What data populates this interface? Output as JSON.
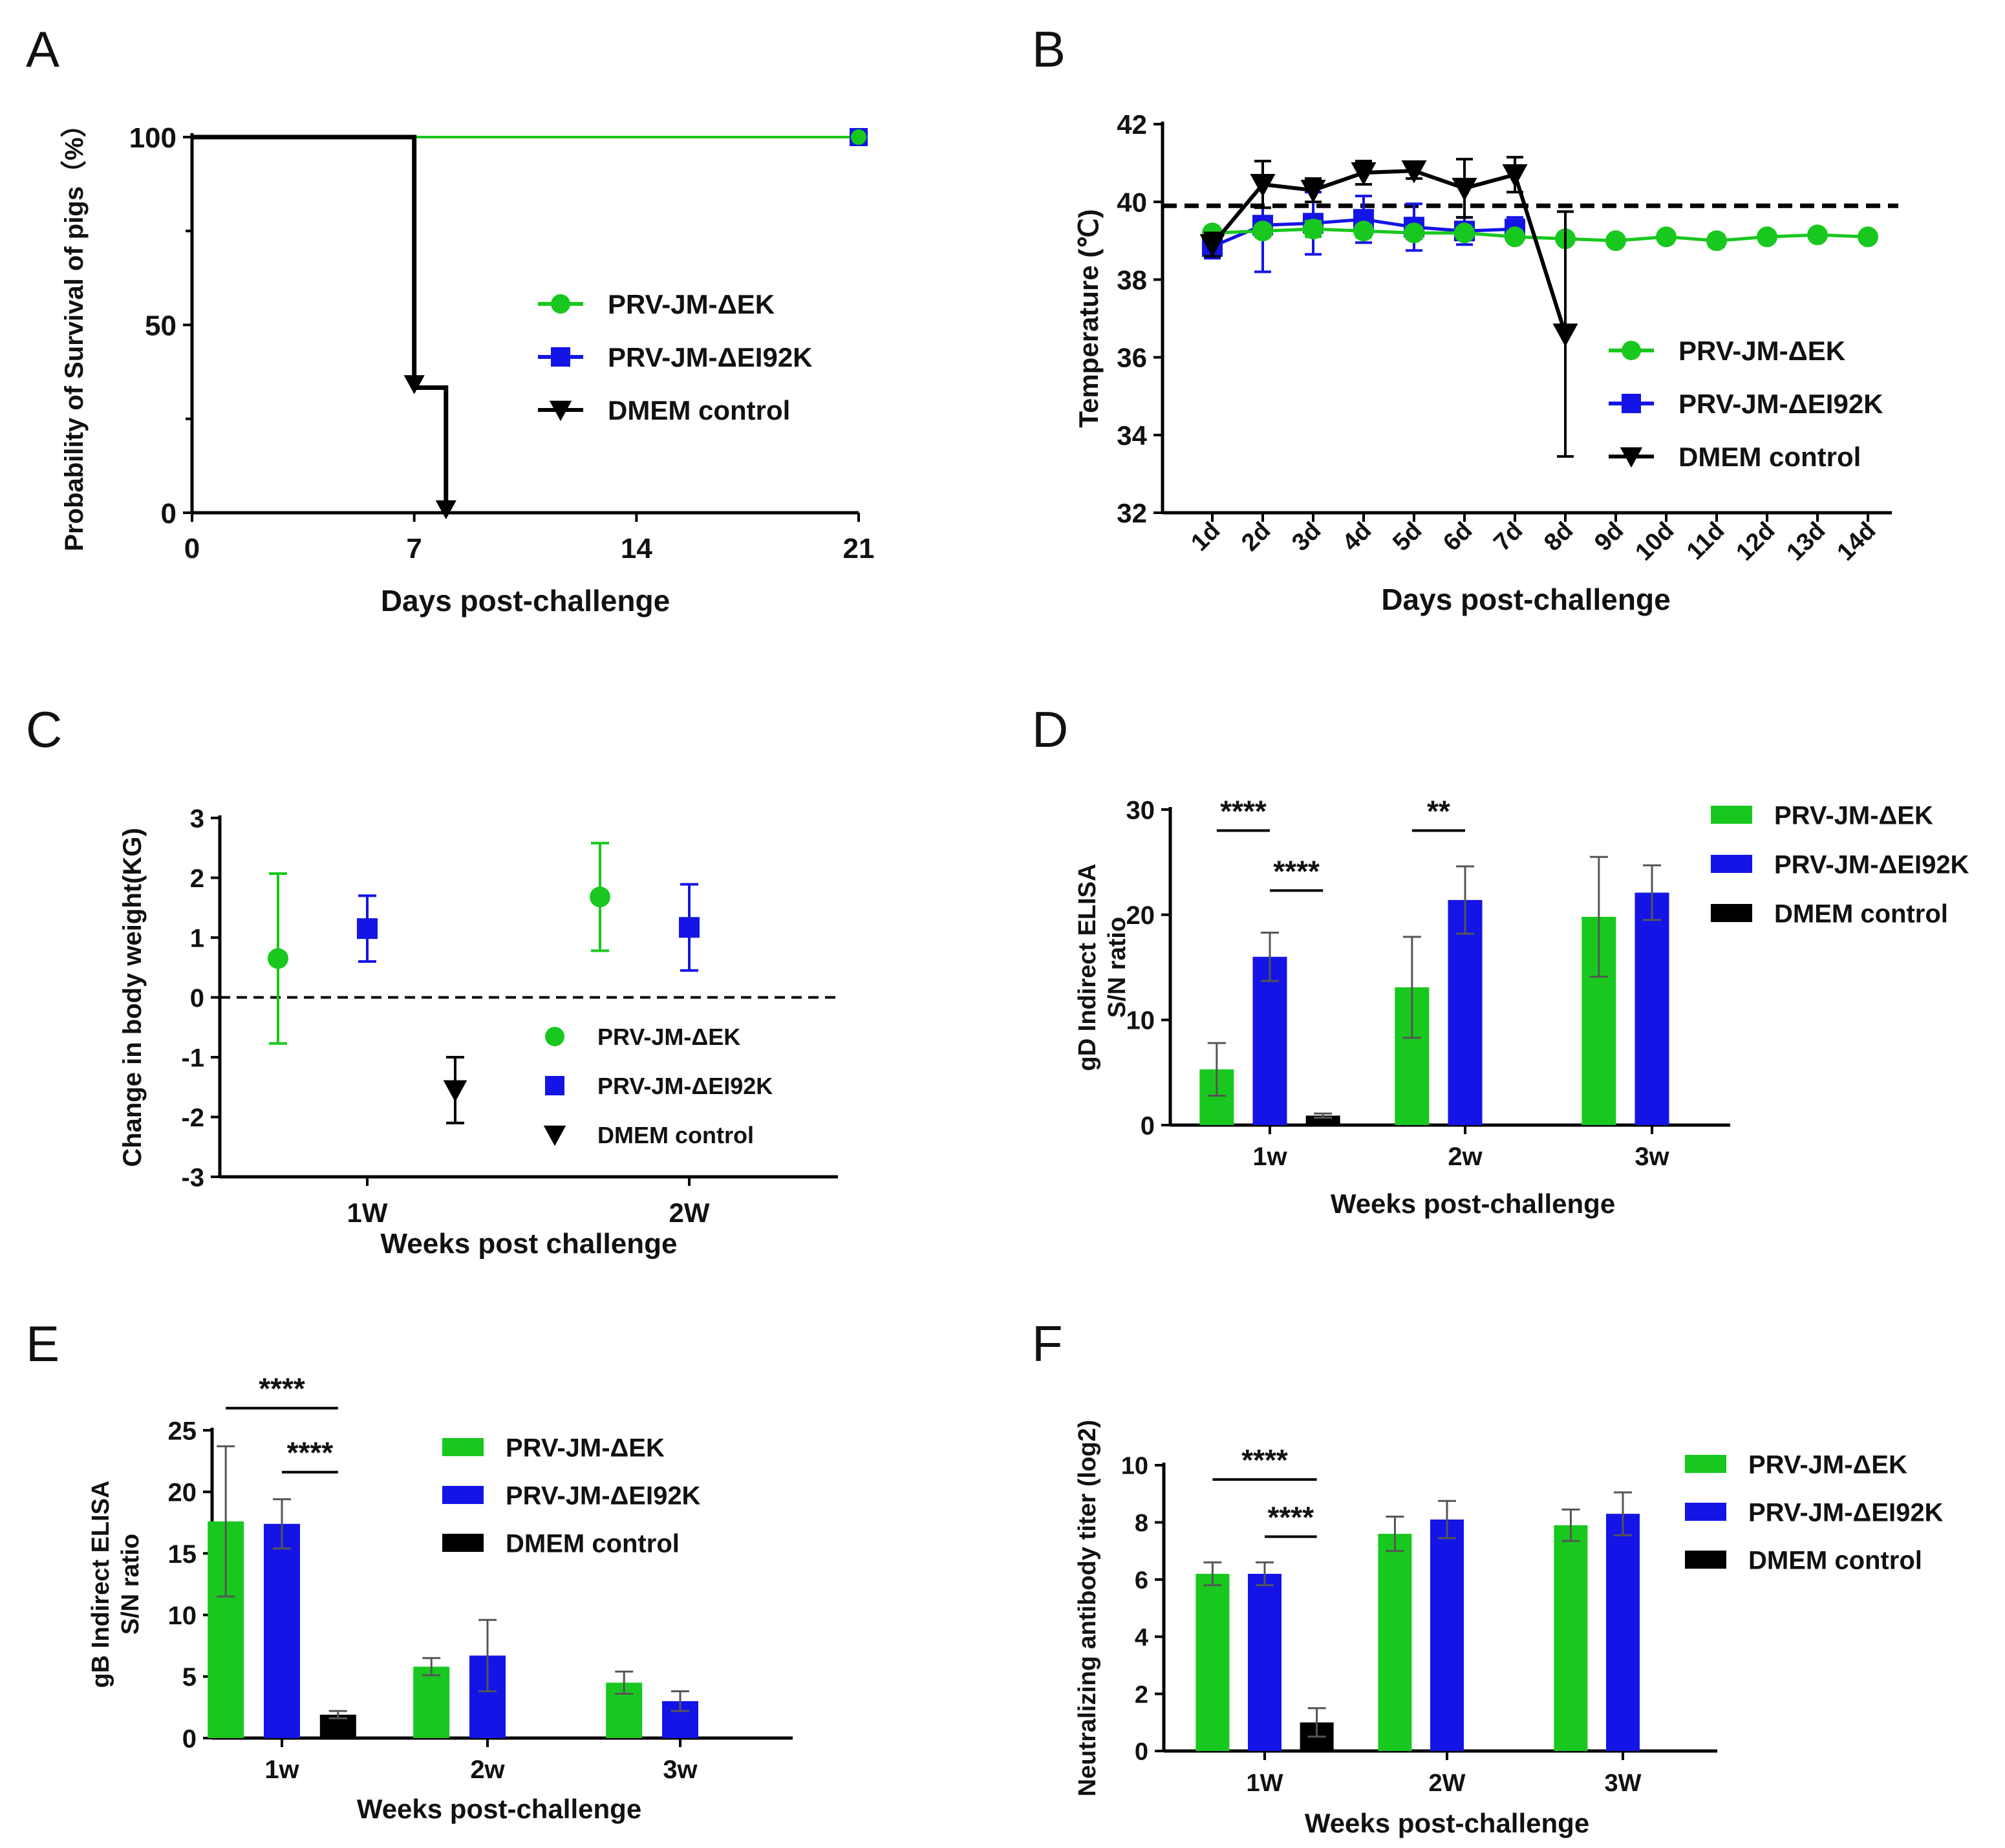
{
  "figure": {
    "panels": [
      "A",
      "B",
      "C",
      "D",
      "E",
      "F"
    ]
  },
  "colors": {
    "green": "#19c81e",
    "blue": "#1414e6",
    "black": "#000000"
  },
  "chart_data": [
    {
      "panel": "A",
      "type": "line",
      "subtype": "survival-step",
      "xlabel": "Days post-challenge",
      "ylabel": "Probability of Survival of pigs（%）",
      "xlim": [
        0,
        21
      ],
      "ylim": [
        0,
        100
      ],
      "xticks": [
        "0",
        "7",
        "14",
        "21"
      ],
      "yticks": [
        "0",
        "50",
        "100"
      ],
      "legend": {
        "position": "right",
        "entries": [
          "PRV-JM-ΔEK",
          "PRV-JM-ΔEI92K",
          "DMEM control"
        ]
      },
      "series": [
        {
          "name": "PRV-JM-ΔEK",
          "color": "green",
          "marker": "circle",
          "x": [
            0,
            21
          ],
          "y": [
            100,
            100
          ]
        },
        {
          "name": "PRV-JM-ΔEI92K",
          "color": "blue",
          "marker": "square",
          "x": [
            0,
            21
          ],
          "y": [
            100,
            100
          ]
        },
        {
          "name": "DMEM control",
          "color": "black",
          "marker": "triangle-down",
          "x": [
            0,
            7,
            7,
            8,
            8
          ],
          "y": [
            100,
            100,
            33.3,
            33.3,
            0
          ]
        }
      ]
    },
    {
      "panel": "B",
      "type": "line",
      "xlabel": "Days post-challenge",
      "ylabel": "Temperature (℃)",
      "ylim": [
        32,
        42
      ],
      "yticks": [
        "32",
        "34",
        "36",
        "38",
        "40",
        "42"
      ],
      "categories": [
        "1d",
        "2d",
        "3d",
        "4d",
        "5d",
        "6d",
        "7d",
        "8d",
        "9d",
        "10d",
        "11d",
        "12d",
        "13d",
        "14d"
      ],
      "threshold": 39.9,
      "legend": {
        "position": "bottom-right",
        "entries": [
          "PRV-JM-ΔEK",
          "PRV-JM-ΔEI92K",
          "DMEM control"
        ]
      },
      "series": [
        {
          "name": "PRV-JM-ΔEK",
          "color": "green",
          "marker": "circle",
          "values": [
            39.2,
            39.25,
            39.3,
            39.25,
            39.2,
            39.2,
            39.1,
            39.05,
            39.0,
            39.1,
            39.0,
            39.1,
            39.15,
            39.1
          ],
          "err": [
            0.1,
            0.15,
            0.2,
            0.15,
            0.15,
            0.1,
            0.1,
            0.1,
            0.1,
            0.1,
            0.15,
            0.1,
            0.1,
            0.1
          ]
        },
        {
          "name": "PRV-JM-ΔEI92K",
          "color": "blue",
          "marker": "square",
          "values": [
            38.85,
            39.4,
            39.45,
            39.55,
            39.35,
            39.25,
            39.3,
            null,
            null,
            null,
            null,
            null,
            null,
            null
          ],
          "err": [
            0.3,
            1.2,
            0.8,
            0.6,
            0.6,
            0.35,
            0.3,
            null,
            null,
            null,
            null,
            null,
            null,
            null
          ]
        },
        {
          "name": "DMEM control",
          "color": "black",
          "marker": "triangle-down",
          "values": [
            38.9,
            40.45,
            40.3,
            40.75,
            40.8,
            40.35,
            40.7,
            36.6,
            null,
            null,
            null,
            null,
            null,
            null
          ],
          "err": [
            0.3,
            0.6,
            0.3,
            0.3,
            0.2,
            0.75,
            0.45,
            3.15,
            null,
            null,
            null,
            null,
            null,
            null
          ]
        }
      ]
    },
    {
      "panel": "C",
      "type": "scatter",
      "xlabel": "Weeks post challenge",
      "ylabel": "Change in body weight(KG)",
      "ylim": [
        -3,
        3
      ],
      "yticks": [
        "-3",
        "-2",
        "-1",
        "0",
        "1",
        "2",
        "3"
      ],
      "categories": [
        "1W",
        "2W"
      ],
      "legend": {
        "position": "bottom-right",
        "entries": [
          "PRV-JM-ΔEK",
          "PRV-JM-ΔEI92K",
          "DMEM control"
        ]
      },
      "series": [
        {
          "name": "PRV-JM-ΔEK",
          "color": "green",
          "marker": "circle",
          "values": [
            0.65,
            1.68
          ],
          "err": [
            1.42,
            0.9
          ]
        },
        {
          "name": "PRV-JM-ΔEI92K",
          "color": "blue",
          "marker": "square",
          "values": [
            1.15,
            1.17
          ],
          "err": [
            0.55,
            0.72
          ]
        },
        {
          "name": "DMEM control",
          "color": "black",
          "marker": "triangle-down",
          "values": [
            -1.55,
            null
          ],
          "err": [
            0.55,
            null
          ]
        }
      ]
    },
    {
      "panel": "D",
      "type": "bar",
      "xlabel": "Weeks post-challenge",
      "ylabel": [
        "gD Indirect ELISA",
        "S/N ratio"
      ],
      "ylim": [
        0,
        30
      ],
      "yticks": [
        "0",
        "10",
        "20",
        "30"
      ],
      "categories": [
        "1w",
        "2w",
        "3w"
      ],
      "legend": {
        "position": "top-right",
        "entries": [
          "PRV-JM-ΔEK",
          "PRV-JM-ΔEI92K",
          "DMEM control"
        ]
      },
      "series": [
        {
          "name": "PRV-JM-ΔEK",
          "color": "green",
          "values": [
            5.3,
            13.1,
            19.8
          ],
          "err": [
            2.5,
            4.8,
            5.7
          ]
        },
        {
          "name": "PRV-JM-ΔEI92K",
          "color": "blue",
          "values": [
            16.0,
            21.4,
            22.1
          ],
          "err": [
            2.3,
            3.2,
            2.6
          ]
        },
        {
          "name": "DMEM control",
          "color": "black",
          "values": [
            0.9,
            null,
            null
          ],
          "err": [
            0.2,
            null,
            null
          ]
        }
      ],
      "annotations": [
        {
          "text": "****",
          "category": 0,
          "from": 0,
          "to": 1,
          "y": 29.2,
          "line_y": 28.0
        },
        {
          "text": "****",
          "category": 0,
          "from": 1,
          "to": 2,
          "y": 23.5,
          "line_y": 22.3
        },
        {
          "text": "**",
          "category": 1,
          "from": 0,
          "to": 1,
          "y": 29.2,
          "line_y": 28.0
        }
      ]
    },
    {
      "panel": "E",
      "type": "bar",
      "xlabel": "Weeks post-challenge",
      "ylabel": [
        "gB Indirect ELISA",
        "S/N ratio"
      ],
      "ylim": [
        0,
        25
      ],
      "yticks": [
        "0",
        "5",
        "10",
        "15",
        "20",
        "25"
      ],
      "categories": [
        "1w",
        "2w",
        "3w"
      ],
      "legend": {
        "position": "top-right",
        "entries": [
          "PRV-JM-ΔEK",
          "PRV-JM-ΔEI92K",
          "DMEM control"
        ]
      },
      "series": [
        {
          "name": "PRV-JM-ΔEK",
          "color": "green",
          "values": [
            17.6,
            5.8,
            4.5
          ],
          "err": [
            6.1,
            0.7,
            0.9
          ]
        },
        {
          "name": "PRV-JM-ΔEI92K",
          "color": "blue",
          "values": [
            17.4,
            6.7,
            3.0
          ],
          "err": [
            2.0,
            2.9,
            0.8
          ]
        },
        {
          "name": "DMEM control",
          "color": "black",
          "values": [
            1.9,
            null,
            null
          ],
          "err": [
            0.3,
            null,
            null
          ]
        }
      ],
      "annotations": [
        {
          "text": "****",
          "category": 0,
          "from": 0,
          "to": 2,
          "y": 27.8,
          "line_y": 26.8
        },
        {
          "text": "****",
          "category": 0,
          "from": 1,
          "to": 2,
          "y": 22.2,
          "line_y": 21.6
        }
      ]
    },
    {
      "panel": "F",
      "type": "bar",
      "xlabel": "Weeks post-challenge",
      "ylabel": "Neutralizing antibody titer (log2)",
      "ylim": [
        0,
        10
      ],
      "yticks": [
        "0",
        "2",
        "4",
        "6",
        "8",
        "10"
      ],
      "categories": [
        "1W",
        "2W",
        "3W"
      ],
      "legend": {
        "position": "top-right",
        "entries": [
          "PRV-JM-ΔEK",
          "PRV-JM-ΔEI92K",
          "DMEM control"
        ]
      },
      "series": [
        {
          "name": "PRV-JM-ΔEK",
          "color": "green",
          "values": [
            6.2,
            7.6,
            7.9
          ],
          "err": [
            0.4,
            0.6,
            0.55
          ]
        },
        {
          "name": "PRV-JM-ΔEI92K",
          "color": "blue",
          "values": [
            6.2,
            8.1,
            8.3
          ],
          "err": [
            0.4,
            0.65,
            0.75
          ]
        },
        {
          "name": "DMEM control",
          "color": "black",
          "values": [
            1.0,
            null,
            null
          ],
          "err": [
            0.5,
            null,
            null
          ]
        }
      ],
      "annotations": [
        {
          "text": "****",
          "category": 0,
          "from": 0,
          "to": 2,
          "y": 10.4,
          "line_y": 9.5
        },
        {
          "text": "****",
          "category": 0,
          "from": 1,
          "to": 2,
          "y": 8.5,
          "line_y": 7.5
        }
      ]
    }
  ]
}
